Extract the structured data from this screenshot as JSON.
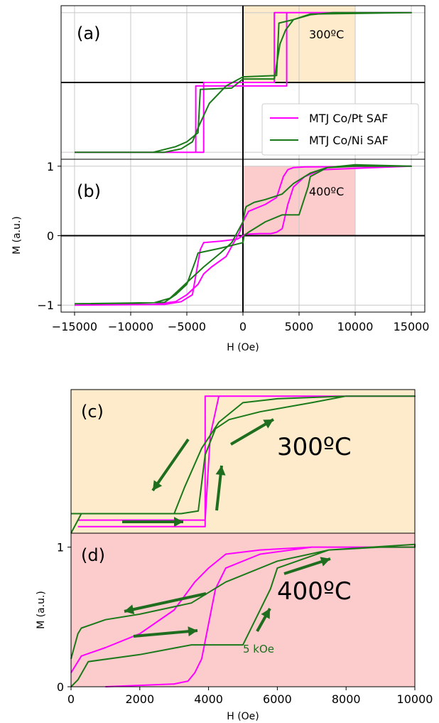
{
  "top_figure": {
    "xlabel": "H (Oe)",
    "ylabel": "M (a.u.)",
    "x_ticks": [
      "−15000",
      "−10000",
      "−5000",
      "0",
      "5000",
      "10000",
      "15000"
    ],
    "y_ticks": [
      "1",
      "0",
      "−1"
    ],
    "legend": [
      "MTJ Co/Pt SAF",
      "MTJ Co/Ni SAF"
    ]
  },
  "bottom_figure": {
    "xlabel": "H (Oe)",
    "ylabel": "M (a.u.)",
    "x_ticks": [
      "0",
      "2000",
      "4000",
      "6000",
      "8000",
      "10000"
    ],
    "y_ticks": [
      "1",
      "0"
    ]
  },
  "colors": {
    "copt": "#ff00ff",
    "coni": "#1a7a1a",
    "orange_band": "#fdebcb",
    "pink_band": "#fccbcb",
    "arrow": "#1f6e1f"
  },
  "chart_data": [
    {
      "panel": "(a)",
      "type": "line",
      "annotation": "300ºC",
      "xlim": [
        -16200,
        16200
      ],
      "ylim": [
        -1.1,
        1.1
      ],
      "shaded_x": [
        0,
        10000
      ],
      "grid": true,
      "series": [
        {
          "name": "MTJ Co/Pt SAF",
          "color": "#ff00ff",
          "x": [
            -15000,
            -3500,
            -3500,
            2800,
            2800,
            15000,
            15000,
            3900,
            3900,
            -4200,
            -4200,
            -15000
          ],
          "y": [
            -1.0,
            -1.0,
            0.0,
            0.0,
            1.0,
            1.0,
            1.0,
            1.0,
            -0.05,
            -0.05,
            -1.0,
            -1.0
          ]
        },
        {
          "name": "MTJ Co/Ni SAF",
          "color": "#1a7a1a",
          "x": [
            -15000,
            -8000,
            -6000,
            -5000,
            -4000,
            -3800,
            -1000,
            0,
            2800,
            3300,
            3800,
            4500,
            6000,
            8000,
            15000,
            15000,
            6000,
            4500,
            3200,
            3000,
            0,
            -1500,
            -3000,
            -4000,
            -4500,
            -5500,
            -7000,
            -15000
          ],
          "y": [
            -1.0,
            -1.0,
            -0.92,
            -0.85,
            -0.72,
            -0.1,
            -0.08,
            0.05,
            0.05,
            0.55,
            0.75,
            0.9,
            0.97,
            1.0,
            1.0,
            1.0,
            0.98,
            0.9,
            0.85,
            0.1,
            0.08,
            -0.05,
            -0.3,
            -0.65,
            -0.85,
            -0.95,
            -1.0,
            -1.0
          ]
        }
      ]
    },
    {
      "panel": "(b)",
      "type": "line",
      "annotation": "400ºC",
      "xlim": [
        -16200,
        16200
      ],
      "ylim": [
        -1.1,
        1.1
      ],
      "shaded_x": [
        0,
        10000
      ],
      "grid": true,
      "series": [
        {
          "name": "MTJ Co/Pt SAF",
          "color": "#ff00ff",
          "x": [
            -15000,
            -7000,
            -5500,
            -4500,
            -3800,
            -3500,
            -2000,
            -500,
            0,
            200,
            1500,
            2500,
            3000,
            3500,
            4000,
            4500,
            5500,
            7000,
            15000,
            15000,
            5500,
            4500,
            4000,
            3600,
            3300,
            3000,
            2000,
            500,
            0,
            -300,
            -1500,
            -2800,
            -3500,
            -4000,
            -5000,
            -6000,
            -8000,
            -15000
          ],
          "y": [
            -1.0,
            -0.99,
            -0.95,
            -0.85,
            -0.2,
            -0.1,
            -0.08,
            -0.05,
            0.0,
            0.02,
            0.03,
            0.03,
            0.05,
            0.1,
            0.45,
            0.7,
            0.85,
            0.95,
            1.0,
            1.0,
            0.99,
            0.98,
            0.95,
            0.85,
            0.7,
            0.55,
            0.45,
            0.35,
            0.2,
            0.05,
            -0.3,
            -0.45,
            -0.55,
            -0.7,
            -0.85,
            -0.95,
            -0.99,
            -1.0
          ]
        },
        {
          "name": "MTJ Co/Ni SAF",
          "color": "#1a7a1a",
          "x": [
            -15000,
            -10000,
            -7000,
            -6000,
            -5000,
            -4200,
            -4000,
            -2000,
            0,
            100,
            500,
            2000,
            3500,
            5000,
            5800,
            6000,
            7500,
            10000,
            15000,
            15000,
            10000,
            7500,
            6000,
            4500,
            3500,
            2000,
            1000,
            300,
            200,
            0,
            -1000,
            -2000,
            -3500,
            -4500,
            -5500,
            -6500,
            -8000,
            -15000
          ],
          "y": [
            -0.98,
            -0.97,
            -0.96,
            -0.85,
            -0.7,
            -0.35,
            -0.25,
            -0.18,
            -0.1,
            0.0,
            0.05,
            0.2,
            0.3,
            0.3,
            0.7,
            0.85,
            0.98,
            1.02,
            1.0,
            1.0,
            1.0,
            0.98,
            0.9,
            0.75,
            0.6,
            0.52,
            0.48,
            0.42,
            0.38,
            0.2,
            -0.1,
            -0.25,
            -0.45,
            -0.6,
            -0.75,
            -0.9,
            -0.97,
            -0.98
          ]
        }
      ]
    },
    {
      "panel": "(c)",
      "type": "line",
      "annotation": "300ºC",
      "xlim": [
        0,
        10000
      ],
      "ylim": [
        -0.05,
        1.05
      ],
      "shaded_x": [
        0,
        10000
      ],
      "grid": false,
      "series": [
        {
          "name": "MTJ Co/Pt SAF",
          "color": "#ff00ff",
          "x": [
            200,
            3900,
            3900,
            10000,
            10000,
            4300,
            4050,
            3900,
            200
          ],
          "y": [
            0.0,
            0.0,
            1.0,
            1.0,
            1.0,
            1.0,
            0.7,
            0.05,
            0.05
          ]
        },
        {
          "name": "MTJ Co/Ni SAF",
          "color": "#1a7a1a",
          "x": [
            0,
            200,
            300,
            2000,
            3200,
            3700,
            3900,
            4200,
            4600,
            5500,
            7000,
            8000,
            10000,
            10000,
            8000,
            6000,
            5000,
            4300,
            3800,
            3300,
            3000,
            0
          ],
          "y": [
            -0.05,
            0.05,
            0.1,
            0.1,
            0.1,
            0.12,
            0.55,
            0.75,
            0.82,
            0.88,
            0.95,
            1.0,
            1.0,
            1.0,
            1.0,
            0.98,
            0.95,
            0.8,
            0.6,
            0.3,
            0.1,
            0.1
          ]
        }
      ],
      "arrows": 5
    },
    {
      "panel": "(d)",
      "type": "line",
      "annotation": "400ºC",
      "sub_annotation": "5 kOe",
      "xlim": [
        0,
        10000
      ],
      "ylim": [
        0,
        1.1
      ],
      "shaded_x": [
        0,
        10000
      ],
      "grid": false,
      "series": [
        {
          "name": "MTJ Co/Pt SAF",
          "color": "#ff00ff",
          "x": [
            1000,
            3000,
            3400,
            3600,
            3800,
            4000,
            4200,
            4500,
            5500,
            7000,
            10000,
            10000,
            7000,
            5500,
            4500,
            4000,
            3600,
            3300,
            3000,
            2000,
            1000,
            300,
            0
          ],
          "y": [
            0.0,
            0.02,
            0.04,
            0.1,
            0.2,
            0.45,
            0.7,
            0.85,
            0.95,
            1.0,
            1.0,
            1.0,
            1.0,
            0.98,
            0.95,
            0.85,
            0.75,
            0.65,
            0.55,
            0.38,
            0.28,
            0.22,
            0.1
          ]
        },
        {
          "name": "MTJ Co/Ni SAF",
          "color": "#1a7a1a",
          "x": [
            0,
            200,
            500,
            2000,
            3500,
            5000,
            5800,
            6000,
            7500,
            10000,
            10000,
            9000,
            7500,
            6000,
            4500,
            3500,
            2000,
            1000,
            300,
            200,
            0
          ],
          "y": [
            0.0,
            0.05,
            0.18,
            0.23,
            0.3,
            0.3,
            0.7,
            0.85,
            0.98,
            1.02,
            1.0,
            1.0,
            0.98,
            0.9,
            0.75,
            0.6,
            0.52,
            0.48,
            0.42,
            0.38,
            0.2
          ]
        }
      ],
      "arrows": 5
    }
  ]
}
